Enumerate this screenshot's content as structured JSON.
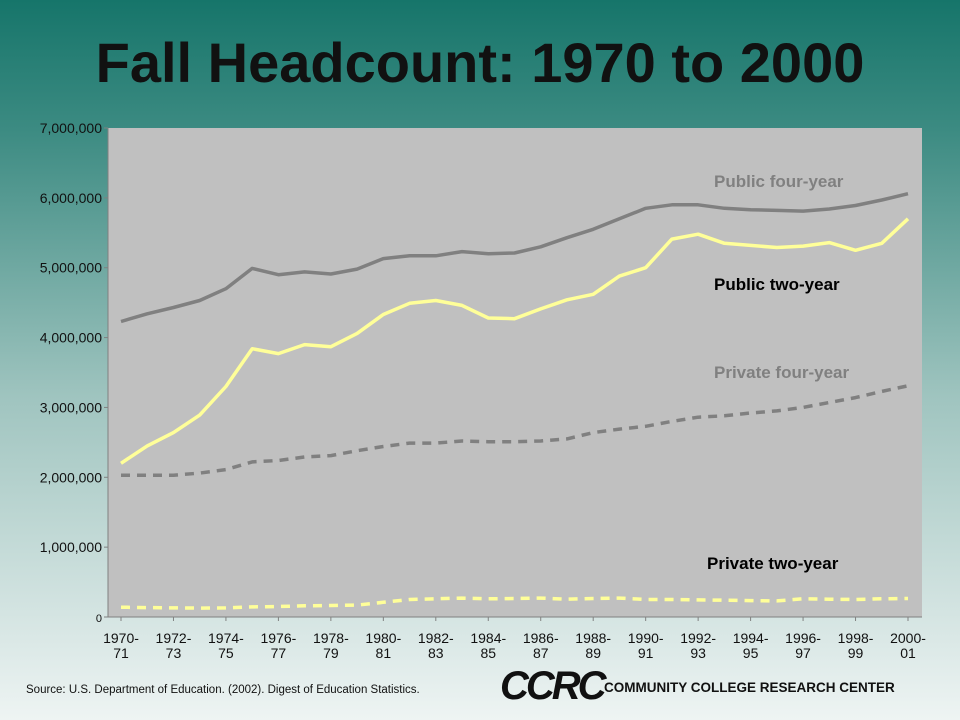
{
  "title": "Fall Headcount: 1970 to 2000",
  "source": "Source: U.S. Department of Education. (2002). Digest of Education Statistics.",
  "logo": {
    "mark": "CCRC",
    "text": "COMMUNITY COLLEGE RESEARCH CENTER"
  },
  "colors": {
    "plot_bg": "#c0c0c0",
    "public_four_year": "#808080",
    "public_two_year": "#ffff99",
    "private_four_year": "#808080",
    "private_two_year": "#ffff99",
    "label_gray": "#808080",
    "label_dark": "#000000"
  },
  "chart_data": {
    "type": "line",
    "title": "Fall Headcount: 1970 to 2000",
    "xlabel": "",
    "ylabel": "",
    "ylim": [
      0,
      7000000
    ],
    "yticks": [
      "0",
      "1,000,000",
      "2,000,000",
      "3,000,000",
      "4,000,000",
      "5,000,000",
      "6,000,000",
      "7,000,000"
    ],
    "grid": false,
    "x_tick_labels": [
      [
        "1970-",
        "71"
      ],
      [
        "1972-",
        "73"
      ],
      [
        "1974-",
        "75"
      ],
      [
        "1976-",
        "77"
      ],
      [
        "1978-",
        "79"
      ],
      [
        "1980-",
        "81"
      ],
      [
        "1982-",
        "83"
      ],
      [
        "1984-",
        "85"
      ],
      [
        "1986-",
        "87"
      ],
      [
        "1988-",
        "89"
      ],
      [
        "1990-",
        "91"
      ],
      [
        "1992-",
        "93"
      ],
      [
        "1994-",
        "95"
      ],
      [
        "1996-",
        "97"
      ],
      [
        "1998-",
        "99"
      ],
      [
        "2000-",
        "01"
      ]
    ],
    "x": [
      "1970-71",
      "1971-72",
      "1972-73",
      "1973-74",
      "1974-75",
      "1975-76",
      "1976-77",
      "1977-78",
      "1978-79",
      "1979-80",
      "1980-81",
      "1981-82",
      "1982-83",
      "1983-84",
      "1984-85",
      "1985-86",
      "1986-87",
      "1987-88",
      "1988-89",
      "1989-90",
      "1990-91",
      "1991-92",
      "1992-93",
      "1993-94",
      "1994-95",
      "1995-96",
      "1996-97",
      "1997-98",
      "1998-99",
      "1999-00",
      "2000-01"
    ],
    "series": [
      {
        "name": "Public four-year",
        "style": "solid",
        "color": "#808080",
        "values": [
          4230000,
          4340000,
          4430000,
          4530000,
          4700000,
          4990000,
          4900000,
          4940000,
          4910000,
          4980000,
          5130000,
          5170000,
          5170000,
          5230000,
          5200000,
          5210000,
          5300000,
          5430000,
          5550000,
          5700000,
          5850000,
          5900000,
          5900000,
          5850000,
          5830000,
          5820000,
          5810000,
          5840000,
          5890000,
          5970000,
          6060000
        ]
      },
      {
        "name": "Public two-year",
        "style": "solid",
        "color": "#ffff99",
        "values": [
          2200000,
          2450000,
          2640000,
          2890000,
          3300000,
          3840000,
          3770000,
          3900000,
          3870000,
          4060000,
          4330000,
          4490000,
          4530000,
          4460000,
          4280000,
          4270000,
          4410000,
          4540000,
          4620000,
          4880000,
          5000000,
          5410000,
          5480000,
          5350000,
          5320000,
          5290000,
          5310000,
          5360000,
          5250000,
          5350000,
          5700000
        ]
      },
      {
        "name": "Private four-year",
        "style": "dashed",
        "color": "#808080",
        "values": [
          2030000,
          2030000,
          2030000,
          2060000,
          2110000,
          2220000,
          2240000,
          2290000,
          2310000,
          2380000,
          2440000,
          2490000,
          2490000,
          2520000,
          2510000,
          2510000,
          2520000,
          2550000,
          2640000,
          2690000,
          2730000,
          2800000,
          2860000,
          2880000,
          2920000,
          2950000,
          3000000,
          3070000,
          3140000,
          3230000,
          3310000
        ]
      },
      {
        "name": "Private two-year",
        "style": "dashed",
        "color": "#ffff99",
        "values": [
          140000,
          135000,
          130000,
          128000,
          130000,
          145000,
          150000,
          160000,
          165000,
          170000,
          210000,
          250000,
          260000,
          270000,
          260000,
          265000,
          270000,
          255000,
          265000,
          270000,
          250000,
          250000,
          245000,
          240000,
          235000,
          230000,
          260000,
          255000,
          250000,
          260000,
          265000
        ]
      }
    ],
    "annotations": [
      {
        "text": "Public four-year",
        "color": "#808080"
      },
      {
        "text": "Public two-year",
        "color": "#000000"
      },
      {
        "text": "Private four-year",
        "color": "#808080"
      },
      {
        "text": "Private two-year",
        "color": "#000000"
      }
    ]
  }
}
